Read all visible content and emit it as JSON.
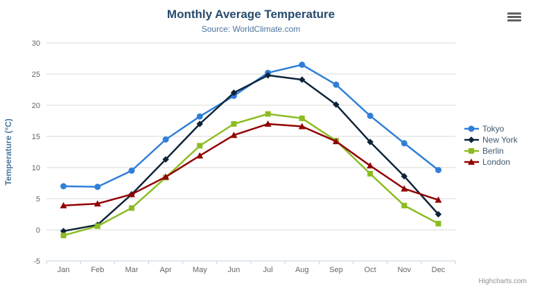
{
  "chart": {
    "title": "Monthly Average Temperature",
    "subtitle": "Source: WorldClimate.com",
    "credits": "Highcharts.com"
  },
  "colors": {
    "title": "#274b6d",
    "subtitle": "#4d759e",
    "axis_title": "#4d759e",
    "tick_label": "#666666",
    "grid_line": "#d8d8d8",
    "axis_line": "#c0d0e0",
    "legend_text": "#3e576f",
    "credits_text": "#909090",
    "burger_icon": "#606060"
  },
  "chart_data": {
    "type": "line",
    "title": "Monthly Average Temperature",
    "subtitle": "Source: WorldClimate.com",
    "categories": [
      "Jan",
      "Feb",
      "Mar",
      "Apr",
      "May",
      "Jun",
      "Jul",
      "Aug",
      "Sep",
      "Oct",
      "Nov",
      "Dec"
    ],
    "series": [
      {
        "name": "Tokyo",
        "color": "#2f7ed8",
        "marker": "circle",
        "values": [
          7.0,
          6.9,
          9.5,
          14.5,
          18.2,
          21.5,
          25.2,
          26.5,
          23.3,
          18.3,
          13.9,
          9.6
        ]
      },
      {
        "name": "New York",
        "color": "#0d233a",
        "marker": "diamond",
        "values": [
          -0.2,
          0.8,
          5.7,
          11.3,
          17.0,
          22.0,
          24.8,
          24.1,
          20.1,
          14.1,
          8.6,
          2.5
        ]
      },
      {
        "name": "Berlin",
        "color": "#8bbc21",
        "marker": "square",
        "values": [
          -0.9,
          0.6,
          3.5,
          8.4,
          13.5,
          17.0,
          18.6,
          17.9,
          14.3,
          9.0,
          3.9,
          1.0
        ]
      },
      {
        "name": "London",
        "color": "#910000",
        "marker": "triangle",
        "values": [
          3.9,
          4.2,
          5.7,
          8.5,
          11.9,
          15.2,
          17.0,
          16.6,
          14.2,
          10.3,
          6.6,
          4.8
        ]
      }
    ],
    "xlabel": "",
    "ylabel": "Temperature (°C)",
    "ylim": [
      -5,
      30
    ],
    "ytick_interval": 5,
    "yticks": [
      -5,
      0,
      5,
      10,
      15,
      20,
      25,
      30
    ],
    "grid": true,
    "legend_position": "right"
  }
}
